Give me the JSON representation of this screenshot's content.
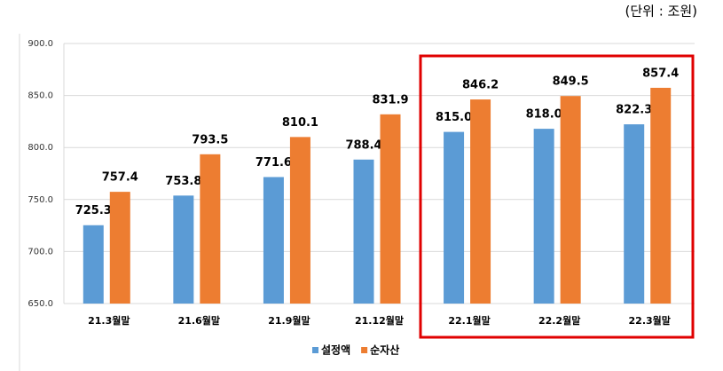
{
  "chart_data": {
    "type": "bar",
    "unit_label": "(단위 : 조원)",
    "categories": [
      "21.3월말",
      "21.6월말",
      "21.9월말",
      "21.12월말",
      "22.1월말",
      "22.2월말",
      "22.3월말"
    ],
    "series": [
      {
        "name": "설정액",
        "color": "#5b9bd5",
        "values": [
          725.3,
          753.8,
          771.6,
          788.4,
          815.0,
          818.0,
          822.3
        ],
        "value_labels": [
          "725.3",
          "753.8",
          "771.6",
          "788.4",
          "815.0",
          "818.0",
          "822.3"
        ]
      },
      {
        "name": "순자산",
        "color": "#ed7d31",
        "values": [
          757.4,
          793.5,
          810.1,
          831.9,
          846.2,
          849.5,
          857.4
        ],
        "value_labels": [
          "757.4",
          "793.5",
          "810.1",
          "831.9",
          "846.2",
          "849.5",
          "857.4"
        ]
      }
    ],
    "ylim": [
      650,
      900
    ],
    "yticks": [
      {
        "value": 650,
        "label": "650.0"
      },
      {
        "value": 700,
        "label": "700.0"
      },
      {
        "value": 750,
        "label": "750.0"
      },
      {
        "value": 800,
        "label": "800.0"
      },
      {
        "value": 850,
        "label": "850.0"
      },
      {
        "value": 900,
        "label": "900.0"
      }
    ],
    "grid": true,
    "legend": "bottom"
  }
}
